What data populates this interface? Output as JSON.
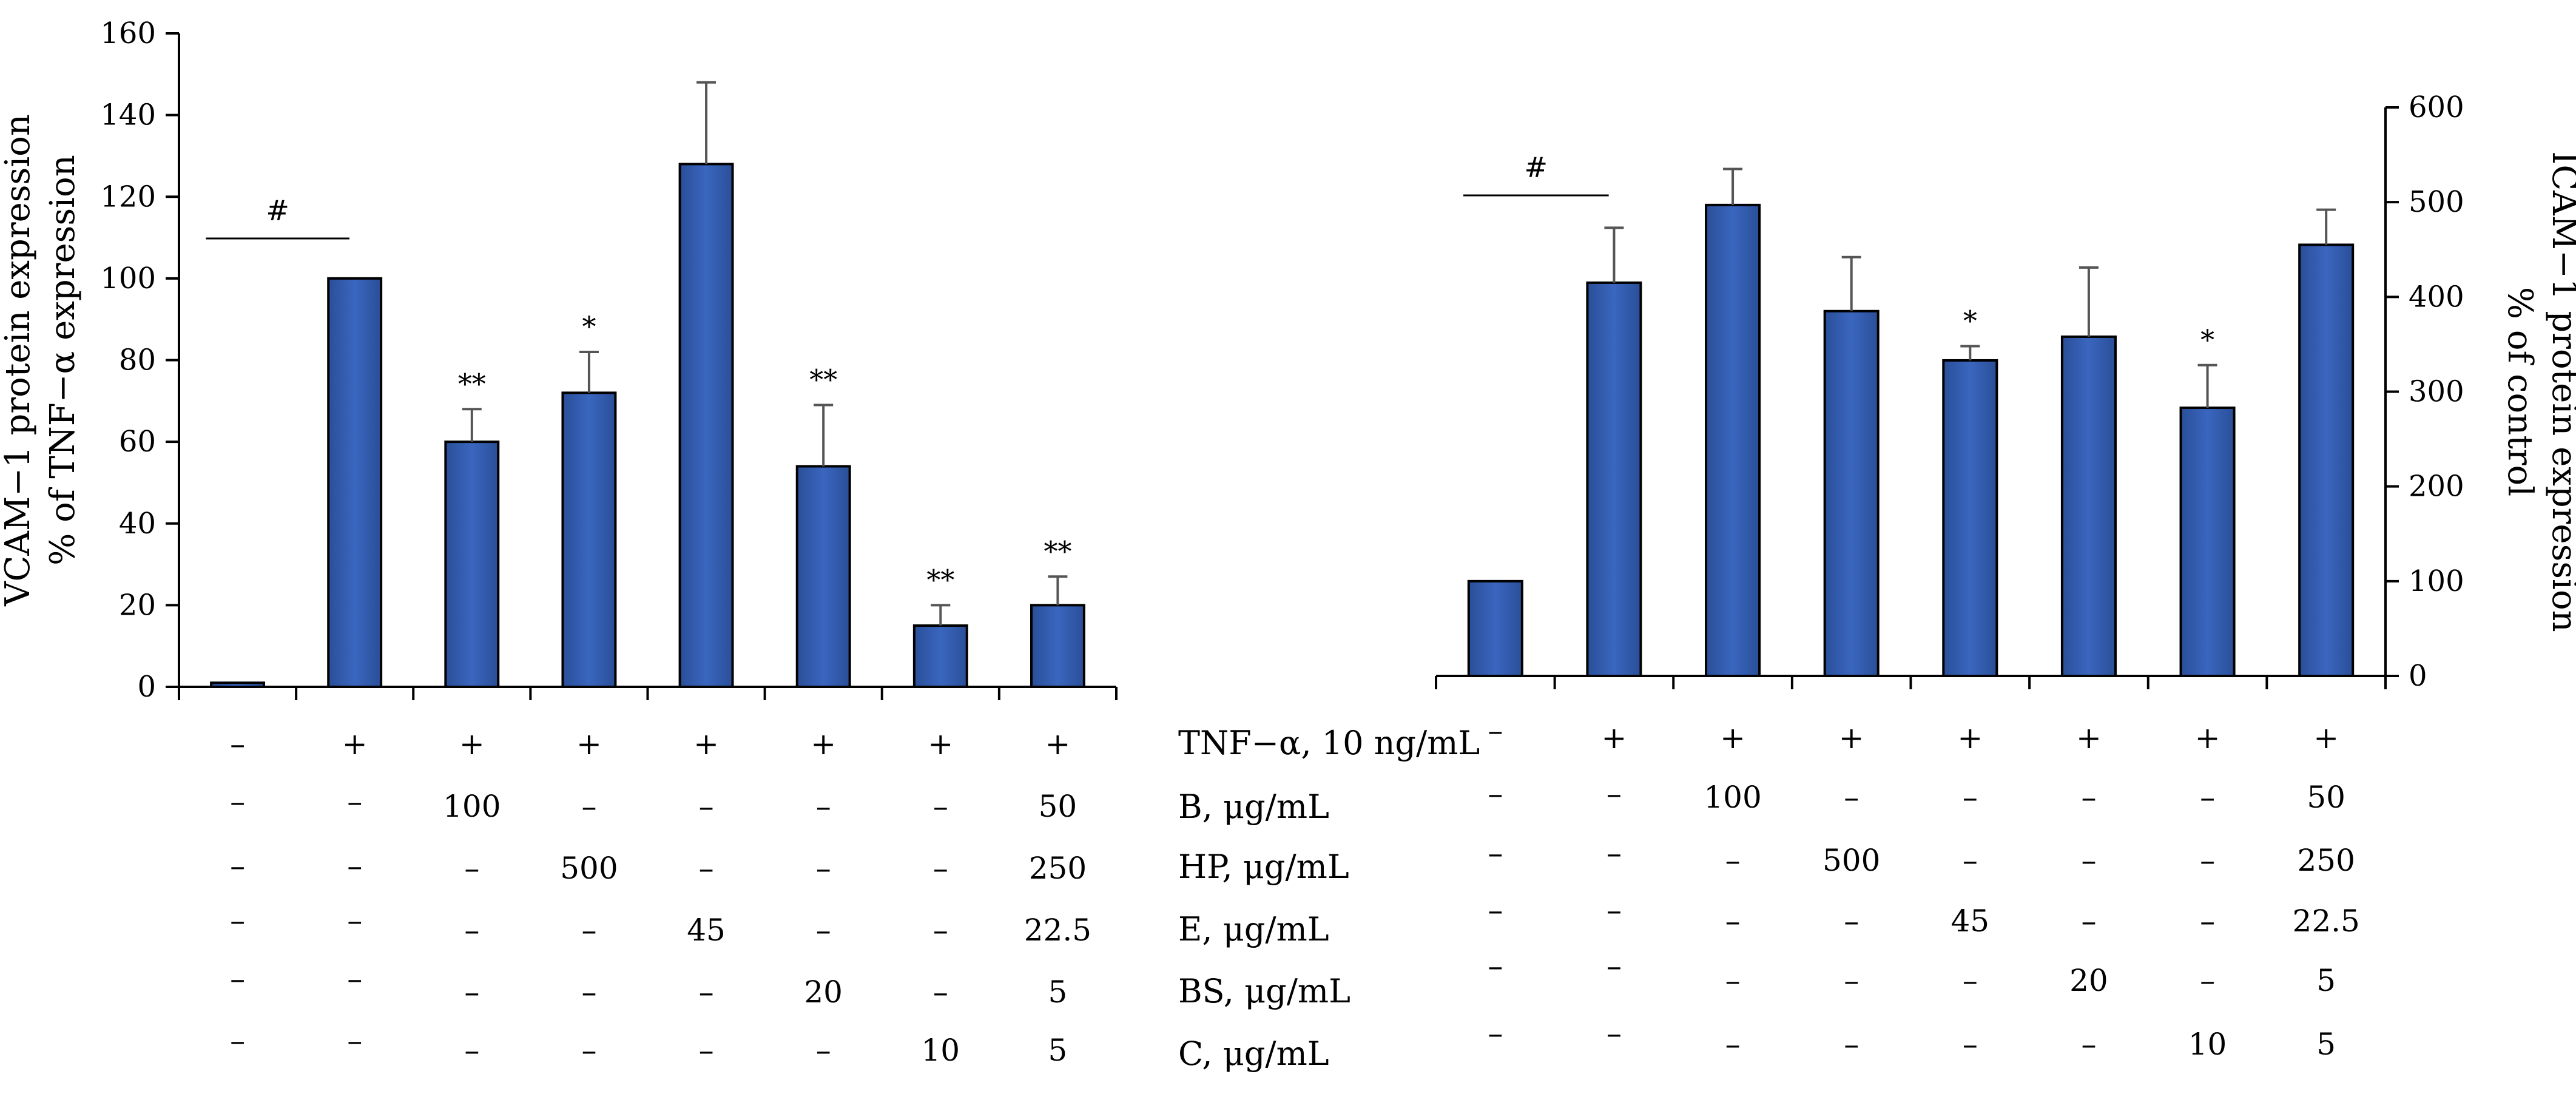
{
  "chart_data": [
    {
      "type": "bar",
      "ylabel_line1": "VCAM−1 protein expression",
      "ylabel_line2": "% of TNF−α expression",
      "ylim": [
        0,
        160
      ],
      "yticks": [
        "0",
        "20",
        "40",
        "60",
        "80",
        "100",
        "120",
        "140",
        "160"
      ],
      "axis_side": "left",
      "values": [
        1,
        100,
        60,
        72,
        128,
        54,
        15,
        20
      ],
      "errors": [
        0,
        0,
        8,
        10,
        20,
        15,
        5,
        7
      ],
      "markers": [
        "",
        "",
        "**",
        "*",
        "",
        "**",
        "**",
        "**"
      ],
      "bracket_label": "#",
      "bar_color": "#2c57a6",
      "conditions": [
        [
          "–",
          "+",
          "+",
          "+",
          "+",
          "+",
          "+",
          "+"
        ],
        [
          "–",
          "–",
          "100",
          "–",
          "–",
          "–",
          "–",
          "50"
        ],
        [
          "–",
          "–",
          "–",
          "500",
          "–",
          "–",
          "–",
          "250"
        ],
        [
          "–",
          "–",
          "–",
          "–",
          "45",
          "–",
          "–",
          "22.5"
        ],
        [
          "–",
          "–",
          "–",
          "–",
          "–",
          "20",
          "–",
          "5"
        ],
        [
          "–",
          "–",
          "–",
          "–",
          "–",
          "–",
          "10",
          "5"
        ]
      ]
    },
    {
      "type": "bar",
      "ylabel_line1": "ICAM−1 protein expression",
      "ylabel_line2": "% of control",
      "ylim": [
        0,
        600
      ],
      "yticks": [
        "0",
        "100",
        "200",
        "300",
        "400",
        "500",
        "600"
      ],
      "axis_side": "right",
      "values": [
        100,
        415,
        497,
        385,
        333,
        358,
        283,
        455
      ],
      "errors": [
        0,
        58,
        38,
        57,
        15,
        73,
        45,
        37
      ],
      "markers": [
        "",
        "",
        "",
        "",
        "*",
        "",
        "*",
        ""
      ],
      "bracket_label": "#",
      "bar_color": "#2c57a6",
      "conditions": [
        [
          "–",
          "+",
          "+",
          "+",
          "+",
          "+",
          "+",
          "+"
        ],
        [
          "–",
          "–",
          "100",
          "–",
          "–",
          "–",
          "–",
          "50"
        ],
        [
          "–",
          "–",
          "–",
          "500",
          "–",
          "–",
          "–",
          "250"
        ],
        [
          "–",
          "–",
          "–",
          "–",
          "45",
          "–",
          "–",
          "22.5"
        ],
        [
          "–",
          "–",
          "–",
          "–",
          "–",
          "20",
          "–",
          "5"
        ],
        [
          "–",
          "–",
          "–",
          "–",
          "–",
          "–",
          "10",
          "5"
        ]
      ]
    }
  ],
  "row_labels": [
    "TNF−α, 10 ng/mL",
    "B, μg/mL",
    "HP, μg/mL",
    "E, μg/mL",
    "BS, μg/mL",
    "C,  μg/mL"
  ]
}
